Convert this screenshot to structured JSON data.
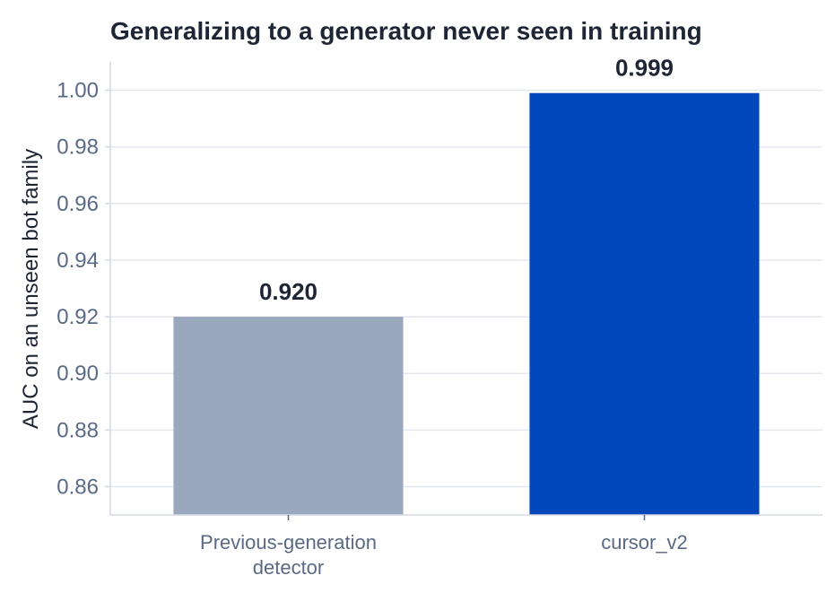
{
  "chart_data": {
    "type": "bar",
    "title": "Generalizing to a generator never seen in training",
    "xlabel": "",
    "ylabel": "AUC on an unseen bot family",
    "categories": [
      "Previous-generation detector",
      "cursor_v2"
    ],
    "category_label_lines": [
      [
        "Previous-generation",
        "detector"
      ],
      [
        "cursor_v2"
      ]
    ],
    "values": [
      0.92,
      0.999
    ],
    "value_labels": [
      "0.920",
      "0.999"
    ],
    "bar_colors": [
      "#9aa8bd",
      "#0047bb"
    ],
    "ylim": [
      0.85,
      1.01
    ],
    "yticks": [
      0.86,
      0.88,
      0.9,
      0.92,
      0.94,
      0.96,
      0.98,
      1.0
    ],
    "ytick_labels": [
      "0.86",
      "0.88",
      "0.90",
      "0.92",
      "0.94",
      "0.96",
      "0.98",
      "1.00"
    ],
    "grid": true,
    "colors": {
      "title": "#1e2535",
      "axis_label": "#1e2535",
      "tick_label": "#5a6a85",
      "grid": "#e3e7ee",
      "axis": "#d3d9e3",
      "value_label": "#1e2535"
    }
  }
}
